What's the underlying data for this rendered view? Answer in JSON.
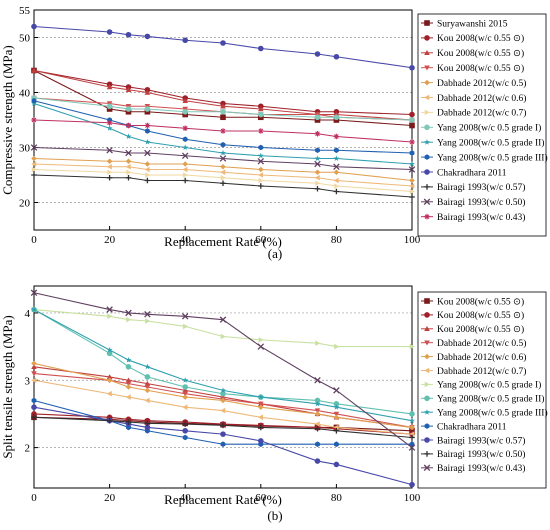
{
  "chart_data": [
    {
      "type": "line",
      "panel_label": "(a)",
      "xlabel": "Replacement Rate (%)",
      "ylabel": "Compressive strength (MPa)",
      "xlim": [
        0,
        100
      ],
      "ylim": [
        15,
        55
      ],
      "xticks": [
        0,
        20,
        40,
        60,
        80,
        100
      ],
      "yticks": [
        20,
        30,
        40,
        50,
        55
      ],
      "grid": "horizontal dotted",
      "legend_position": "right",
      "series": [
        {
          "name": "Suryawanshi 2015",
          "color": "#7a1a1a",
          "marker": "square",
          "x": [
            0,
            20,
            25,
            30,
            40,
            50,
            60,
            75,
            80,
            100
          ],
          "y": [
            44,
            37,
            36.5,
            36.5,
            36,
            35.5,
            35.5,
            35,
            35,
            34
          ]
        },
        {
          "name": "Kou 2008(w/c 0.55 ⊙)",
          "color": "#a0202a",
          "marker": "circle",
          "x": [
            0,
            20,
            25,
            30,
            40,
            50,
            60,
            75,
            80,
            100
          ],
          "y": [
            44,
            41.5,
            41,
            40.5,
            39,
            38,
            37.5,
            36.5,
            36.5,
            36
          ]
        },
        {
          "name": "Kou 2008(w/c 0.55 ⊙)",
          "color": "#c04040",
          "marker": "triangle",
          "x": [
            0,
            20,
            25,
            30,
            40,
            50,
            60,
            75,
            80,
            100
          ],
          "y": [
            44,
            41,
            40.5,
            40,
            38.5,
            37.5,
            37,
            36,
            36,
            35
          ]
        },
        {
          "name": "Kou 2008(w/c 0.55 ⊙)",
          "color": "#d05050",
          "marker": "triangle-down",
          "x": [
            0,
            20,
            25,
            30,
            40,
            50,
            60,
            75,
            80,
            100
          ],
          "y": [
            39,
            38,
            37.5,
            37.5,
            37,
            36.5,
            36,
            36,
            35.5,
            35
          ]
        },
        {
          "name": "Dabhade 2012(w/c 0.5)",
          "color": "#e0a050",
          "marker": "diamond",
          "x": [
            0,
            20,
            25,
            30,
            40,
            50,
            60,
            75,
            80,
            100
          ],
          "y": [
            28,
            27.5,
            27.5,
            27,
            27,
            26.5,
            26,
            25.5,
            25.5,
            24
          ]
        },
        {
          "name": "Dabhade 2012(w/c 0.6)",
          "color": "#eeb878",
          "marker": "triangle-left",
          "x": [
            0,
            20,
            25,
            30,
            40,
            50,
            60,
            75,
            80,
            100
          ],
          "y": [
            27,
            26.5,
            26.5,
            26,
            26,
            25.5,
            25,
            24.5,
            24,
            23
          ]
        },
        {
          "name": "Dabhade 2012(w/c 0.7)",
          "color": "#f0d8a0",
          "marker": "triangle-right",
          "x": [
            0,
            20,
            25,
            30,
            40,
            50,
            60,
            75,
            80,
            100
          ],
          "y": [
            26,
            25.5,
            25.5,
            25,
            25,
            24.5,
            24,
            23.5,
            23,
            22
          ]
        },
        {
          "name": "Yang 2008(w/c 0.5  grade I)",
          "color": "#80c8b8",
          "marker": "circle",
          "x": [
            0,
            20,
            25,
            30,
            40,
            50,
            60,
            75,
            80,
            100
          ],
          "y": [
            39,
            37.5,
            37,
            37,
            36.5,
            36.5,
            36,
            35.5,
            35.5,
            35
          ]
        },
        {
          "name": "Yang 2008(w/c 0.5  grade II)",
          "color": "#30a0b0",
          "marker": "star",
          "x": [
            0,
            20,
            25,
            30,
            40,
            50,
            60,
            75,
            80,
            100
          ],
          "y": [
            38,
            33.5,
            32,
            31,
            30,
            29,
            28.5,
            28,
            28,
            27
          ]
        },
        {
          "name": "Yang 2008(w/c 0.5  grade III)",
          "color": "#2060b0",
          "marker": "hexagon",
          "x": [
            0,
            20,
            25,
            30,
            40,
            50,
            60,
            75,
            80,
            100
          ],
          "y": [
            38.5,
            35,
            34,
            33,
            31.5,
            30.5,
            30,
            29.5,
            29.5,
            29
          ]
        },
        {
          "name": "Chakradhara 2011",
          "color": "#4848a8",
          "marker": "circle",
          "x": [
            0,
            20,
            25,
            30,
            40,
            50,
            60,
            75,
            80,
            100
          ],
          "y": [
            52,
            51,
            50.5,
            50.2,
            49.5,
            49,
            48,
            47,
            46.5,
            44.5
          ]
        },
        {
          "name": "Bairagi 1993(w/c 0.57)",
          "color": "#303030",
          "marker": "plus",
          "x": [
            0,
            20,
            25,
            30,
            40,
            50,
            60,
            75,
            80,
            100
          ],
          "y": [
            25,
            24.5,
            24.5,
            24,
            24,
            23.5,
            23,
            22.5,
            22,
            21
          ]
        },
        {
          "name": "Bairagi 1993(w/c 0.50)",
          "color": "#604060",
          "marker": "x",
          "x": [
            0,
            20,
            25,
            30,
            40,
            50,
            60,
            75,
            80,
            100
          ],
          "y": [
            30,
            29.5,
            29,
            29,
            28.5,
            28,
            27.5,
            27,
            26.5,
            26
          ]
        },
        {
          "name": "Bairagi 1993(w/c 0.43)",
          "color": "#c03060",
          "marker": "asterisk",
          "x": [
            0,
            20,
            25,
            30,
            40,
            50,
            60,
            75,
            80,
            100
          ],
          "y": [
            35,
            34.5,
            34,
            34,
            33.5,
            33,
            33,
            32.5,
            32,
            31
          ]
        }
      ]
    },
    {
      "type": "line",
      "panel_label": "(b)",
      "xlabel": "Replacement Rate (%)",
      "ylabel": "Split tensile strength (MPa)",
      "xlim": [
        0,
        100
      ],
      "ylim": [
        1.4,
        4.4
      ],
      "xticks": [
        0,
        20,
        40,
        60,
        80,
        100
      ],
      "yticks": [
        2,
        3,
        4
      ],
      "grid": "horizontal dotted",
      "legend_position": "right",
      "series": [
        {
          "name": "Kou 2008(w/c 0.55 ⊙)",
          "color": "#7a1a1a",
          "marker": "square",
          "x": [
            0,
            20,
            25,
            30,
            40,
            50,
            60,
            75,
            80,
            100
          ],
          "y": [
            2.45,
            2.42,
            2.4,
            2.38,
            2.36,
            2.34,
            2.32,
            2.3,
            2.3,
            2.25
          ]
        },
        {
          "name": "Kou 2008(w/c 0.55 ⊙)",
          "color": "#a0202a",
          "marker": "circle",
          "x": [
            0,
            20,
            25,
            30,
            40,
            50,
            60,
            75,
            80,
            100
          ],
          "y": [
            2.5,
            2.45,
            2.42,
            2.4,
            2.38,
            2.35,
            2.33,
            2.3,
            2.28,
            2.2
          ]
        },
        {
          "name": "Kou 2008(w/c 0.55 ⊙)",
          "color": "#c04040",
          "marker": "triangle",
          "x": [
            0,
            20,
            25,
            30,
            40,
            50,
            60,
            75,
            80,
            100
          ],
          "y": [
            3.2,
            3.05,
            3.0,
            2.95,
            2.85,
            2.75,
            2.65,
            2.5,
            2.45,
            2.3
          ]
        },
        {
          "name": "Dabhade 2012(w/c 0.5)",
          "color": "#d05050",
          "marker": "triangle-down",
          "x": [
            0,
            20,
            25,
            30,
            40,
            50,
            60,
            75,
            80,
            100
          ],
          "y": [
            3.1,
            3.0,
            2.95,
            2.9,
            2.8,
            2.72,
            2.65,
            2.55,
            2.5,
            2.3
          ]
        },
        {
          "name": "Dabhade 2012(w/c 0.6)",
          "color": "#e0a050",
          "marker": "diamond",
          "x": [
            0,
            20,
            25,
            30,
            40,
            50,
            60,
            75,
            80,
            100
          ],
          "y": [
            3.25,
            3.0,
            2.9,
            2.85,
            2.75,
            2.7,
            2.6,
            2.5,
            2.45,
            2.3
          ]
        },
        {
          "name": "Dabhade 2012(w/c 0.7)",
          "color": "#eeb878",
          "marker": "triangle-left",
          "x": [
            0,
            20,
            25,
            30,
            40,
            50,
            60,
            75,
            80,
            100
          ],
          "y": [
            3.0,
            2.8,
            2.75,
            2.7,
            2.6,
            2.55,
            2.45,
            2.35,
            2.3,
            2.2
          ]
        },
        {
          "name": "Yang 2008(w/c 0.5  grade I)",
          "color": "#c8e0a0",
          "marker": "triangle-right",
          "x": [
            0,
            20,
            25,
            30,
            40,
            50,
            60,
            75,
            80,
            100
          ],
          "y": [
            4.05,
            3.95,
            3.9,
            3.88,
            3.8,
            3.65,
            3.6,
            3.55,
            3.5,
            3.5
          ]
        },
        {
          "name": "Yang 2008(w/c 0.5  grade II)",
          "color": "#60c0b0",
          "marker": "circle",
          "x": [
            0,
            20,
            25,
            30,
            40,
            50,
            60,
            75,
            80,
            100
          ],
          "y": [
            4.05,
            3.4,
            3.2,
            3.05,
            2.9,
            2.8,
            2.75,
            2.7,
            2.65,
            2.5
          ]
        },
        {
          "name": "Yang 2008(w/c 0.5  grade III)",
          "color": "#30a0b0",
          "marker": "star",
          "x": [
            0,
            20,
            25,
            30,
            40,
            50,
            60,
            75,
            80,
            100
          ],
          "y": [
            4.05,
            3.45,
            3.3,
            3.2,
            3.0,
            2.85,
            2.75,
            2.65,
            2.6,
            2.4
          ]
        },
        {
          "name": "Chakradhara 2011",
          "color": "#2060b0",
          "marker": "hexagon",
          "x": [
            0,
            20,
            25,
            30,
            40,
            50,
            60,
            75,
            80,
            100
          ],
          "y": [
            2.7,
            2.4,
            2.3,
            2.25,
            2.15,
            2.05,
            2.05,
            2.05,
            2.05,
            2.05
          ]
        },
        {
          "name": "Bairagi 1993(w/c 0.57)",
          "color": "#4848a8",
          "marker": "circle",
          "x": [
            0,
            20,
            25,
            30,
            40,
            50,
            60,
            75,
            80,
            100
          ],
          "y": [
            2.6,
            2.4,
            2.35,
            2.3,
            2.25,
            2.2,
            2.1,
            1.8,
            1.75,
            1.45
          ]
        },
        {
          "name": "Bairagi 1993(w/c 0.50)",
          "color": "#303030",
          "marker": "plus",
          "x": [
            0,
            20,
            25,
            30,
            40,
            50,
            60,
            75,
            80,
            100
          ],
          "y": [
            2.45,
            2.4,
            2.38,
            2.36,
            2.35,
            2.33,
            2.3,
            2.28,
            2.25,
            2.15
          ]
        },
        {
          "name": "Bairagi 1993(w/c 0.43)",
          "color": "#604060",
          "marker": "x",
          "x": [
            0,
            20,
            25,
            30,
            40,
            50,
            60,
            75,
            80,
            100
          ],
          "y": [
            4.3,
            4.05,
            4.0,
            3.98,
            3.95,
            3.9,
            3.5,
            3.0,
            2.85,
            2.0
          ]
        }
      ]
    }
  ]
}
